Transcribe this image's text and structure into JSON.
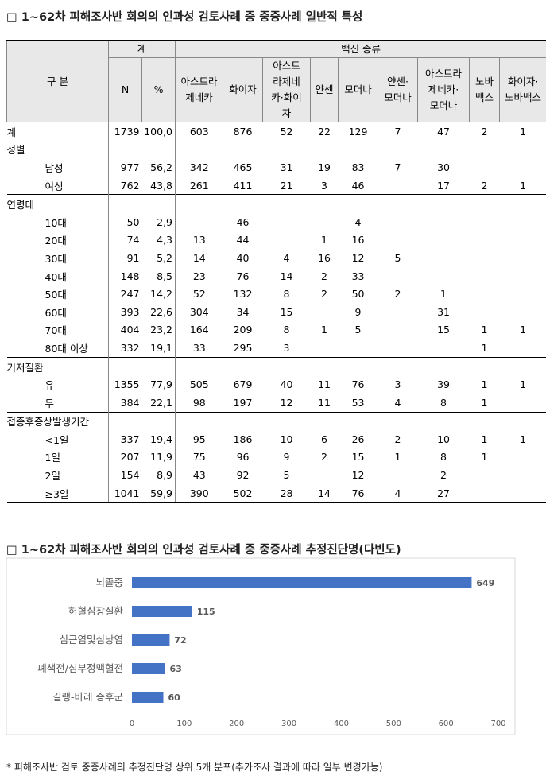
{
  "section1": {
    "title": "□ 1~62차 피해조사반 회의의 인과성 검토사례 중 중증사례 일반적 특성"
  },
  "table": {
    "header": {
      "category": "구 분",
      "total": "계",
      "vaccine": "백신 종류",
      "columns": [
        "N",
        "%",
        "아스트라\n제네카",
        "화이자",
        "아스트\n라제네\n카·화이\n자",
        "얀센",
        "모더나",
        "얀센·\n모더나",
        "아스트라\n제네카·\n모더나",
        "노바\n백스",
        "화이자·\n노바백스"
      ]
    },
    "total": {
      "label": "계",
      "cells": [
        1739,
        "100,0",
        603,
        876,
        52,
        22,
        129,
        7,
        47,
        2,
        1
      ]
    },
    "groups": [
      {
        "label": "성별",
        "rows": [
          {
            "label": "남성",
            "cells": [
              977,
              "56,2",
              342,
              465,
              31,
              19,
              83,
              7,
              30,
              null,
              null
            ]
          },
          {
            "label": "여성",
            "cells": [
              762,
              "43,8",
              261,
              411,
              21,
              3,
              46,
              null,
              17,
              2,
              1
            ]
          }
        ]
      },
      {
        "label": "연령대",
        "rows": [
          {
            "label": "10대",
            "cells": [
              50,
              "2,9",
              null,
              46,
              null,
              null,
              4,
              null,
              null,
              null,
              null
            ]
          },
          {
            "label": "20대",
            "cells": [
              74,
              "4,3",
              13,
              44,
              null,
              1,
              16,
              null,
              null,
              null,
              null
            ]
          },
          {
            "label": "30대",
            "cells": [
              91,
              "5,2",
              14,
              40,
              4,
              16,
              12,
              5,
              null,
              null,
              null
            ]
          },
          {
            "label": "40대",
            "cells": [
              148,
              "8,5",
              23,
              76,
              14,
              2,
              33,
              null,
              null,
              null,
              null
            ]
          },
          {
            "label": "50대",
            "cells": [
              247,
              "14,2",
              52,
              132,
              8,
              2,
              50,
              2,
              1,
              null,
              null
            ]
          },
          {
            "label": "60대",
            "cells": [
              393,
              "22,6",
              304,
              34,
              15,
              null,
              9,
              null,
              31,
              null,
              null
            ]
          },
          {
            "label": "70대",
            "cells": [
              404,
              "23,2",
              164,
              209,
              8,
              1,
              5,
              null,
              15,
              1,
              1
            ]
          },
          {
            "label": "80대 이상",
            "cells": [
              332,
              "19,1",
              33,
              295,
              3,
              null,
              null,
              null,
              null,
              1,
              null
            ]
          }
        ]
      },
      {
        "label": "기저질환",
        "rows": [
          {
            "label": "유",
            "cells": [
              1355,
              "77,9",
              505,
              679,
              40,
              11,
              76,
              3,
              39,
              1,
              1
            ]
          },
          {
            "label": "무",
            "cells": [
              384,
              "22,1",
              98,
              197,
              12,
              11,
              53,
              4,
              8,
              1,
              null
            ]
          }
        ]
      },
      {
        "label": "접종후증상발생기간",
        "rows": [
          {
            "label": "<1일",
            "cells": [
              337,
              "19,4",
              95,
              186,
              10,
              6,
              26,
              2,
              10,
              1,
              1
            ]
          },
          {
            "label": "1일",
            "cells": [
              207,
              "11,9",
              75,
              96,
              9,
              2,
              15,
              1,
              8,
              1,
              null
            ]
          },
          {
            "label": "2일",
            "cells": [
              154,
              "8,9",
              43,
              92,
              5,
              null,
              12,
              null,
              2,
              null,
              null
            ]
          },
          {
            "label": "≥3일",
            "cells": [
              1041,
              "59,9",
              390,
              502,
              28,
              14,
              76,
              4,
              27,
              null,
              null
            ]
          }
        ]
      }
    ]
  },
  "section2": {
    "title": "□ 1~62차 피해조사반 회의의 인과성 검토사례 중 중증사례 추정진단명(다빈도)"
  },
  "chart_data": {
    "type": "bar",
    "orientation": "horizontal",
    "categories": [
      "뇌졸중",
      "허혈심장질환",
      "심근염및심낭염",
      "폐색전/심부정맥혈전",
      "길랭-바레 증후군"
    ],
    "values": [
      649,
      115,
      72,
      63,
      60
    ],
    "color": "#4472c4",
    "xlim": [
      0,
      700
    ],
    "xticks": [
      0,
      100,
      200,
      300,
      400,
      500,
      600,
      700
    ]
  },
  "footnote": "* 피해조사반 검토 중증사례의 추정진단명 상위 5개 분포(추가조사 결과에 따라 일부 변경가능)"
}
